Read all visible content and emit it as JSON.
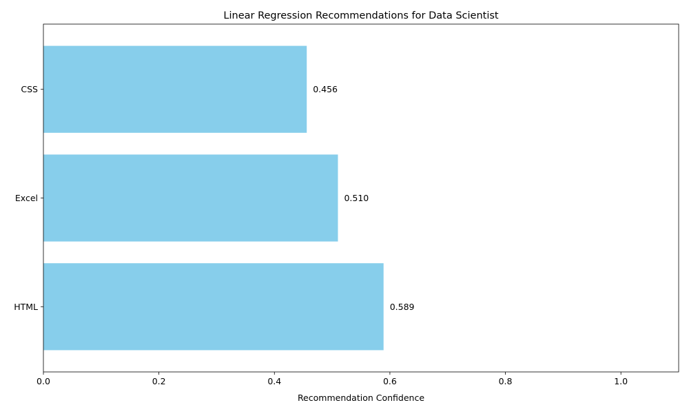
{
  "chart_data": {
    "type": "bar",
    "orientation": "horizontal",
    "title": "Linear Regression Recommendations for Data Scientist",
    "xlabel": "Recommendation Confidence",
    "ylabel": "",
    "categories": [
      "HTML",
      "Excel",
      "CSS"
    ],
    "values": [
      0.589,
      0.51,
      0.456
    ],
    "value_labels": [
      "0.589",
      "0.510",
      "0.456"
    ],
    "xlim": [
      0,
      1.1
    ],
    "xticks": [
      0.0,
      0.2,
      0.4,
      0.6,
      0.8,
      1.0
    ],
    "xtick_labels": [
      "0.0",
      "0.2",
      "0.4",
      "0.6",
      "0.8",
      "1.0"
    ],
    "grid": false,
    "legend": "none",
    "bar_color": "#87CEEB"
  }
}
